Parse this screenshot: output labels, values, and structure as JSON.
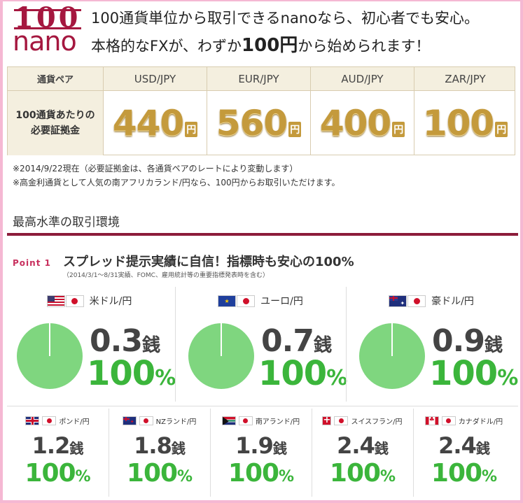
{
  "logo": {
    "number": "100",
    "word": "nano"
  },
  "headline": {
    "line1": "100通貨単位から取引できるnanoなら、初心者でも安心。",
    "line2_pre": "本格的なFXが、わずか",
    "line2_amount": "100円",
    "line2_post": "から始められます！"
  },
  "margin_table": {
    "header_label": "通貨ペア",
    "row_label_1": "100通貨あたりの",
    "row_label_2": "必要証拠金",
    "unit": "円",
    "pairs": [
      {
        "pair": "USD/JPY",
        "amount": "440"
      },
      {
        "pair": "EUR/JPY",
        "amount": "560"
      },
      {
        "pair": "AUD/JPY",
        "amount": "400"
      },
      {
        "pair": "ZAR/JPY",
        "amount": "100"
      }
    ]
  },
  "notes": {
    "note1": "※2014/9/22現在（必要証拠金は、各通貨ペアのレートにより変動します）",
    "note2": "※高金利通貨として人気の南アフリカランド/円なら、100円からお取引いただけます。"
  },
  "section": {
    "title": "最高水準の取引環境"
  },
  "point": {
    "label": "Point 1",
    "title": "スプレッド提示実績に自信！指標時も安心の100%",
    "subtitle": "（2014/3/1～8/31実績、FOMC、雇用統計等の重要指標発表時を含む）"
  },
  "spread_unit": "銭",
  "pct_unit": "%",
  "major_pairs": [
    {
      "name": "米ドル/円",
      "spread": "0.3",
      "pct": "100",
      "flag": "us-flag-icon",
      "pct_value": 100
    },
    {
      "name": "ユーロ/円",
      "spread": "0.7",
      "pct": "100",
      "flag": "eu-flag-icon",
      "pct_value": 100
    },
    {
      "name": "豪ドル/円",
      "spread": "0.9",
      "pct": "100",
      "flag": "au-flag-icon",
      "pct_value": 100
    }
  ],
  "minor_pairs": [
    {
      "name": "ポンド/円",
      "spread": "1.2",
      "pct": "100",
      "flag": "gb-flag-icon"
    },
    {
      "name": "NZランド/円",
      "spread": "1.8",
      "pct": "100",
      "flag": "nz-flag-icon"
    },
    {
      "name": "南アランド/円",
      "spread": "1.9",
      "pct": "100",
      "flag": "za-flag-icon"
    },
    {
      "name": "スイスフラン/円",
      "spread": "2.4",
      "pct": "100",
      "flag": "ch-flag-icon"
    },
    {
      "name": "カナダドル/円",
      "spread": "2.4",
      "pct": "100",
      "flag": "ca-flag-icon"
    }
  ],
  "colors": {
    "brand": "#a5173f",
    "gold": "#c49a3c",
    "green": "#3bb53b",
    "pie": "#7fd67f",
    "frame": "#f5b8d3"
  }
}
